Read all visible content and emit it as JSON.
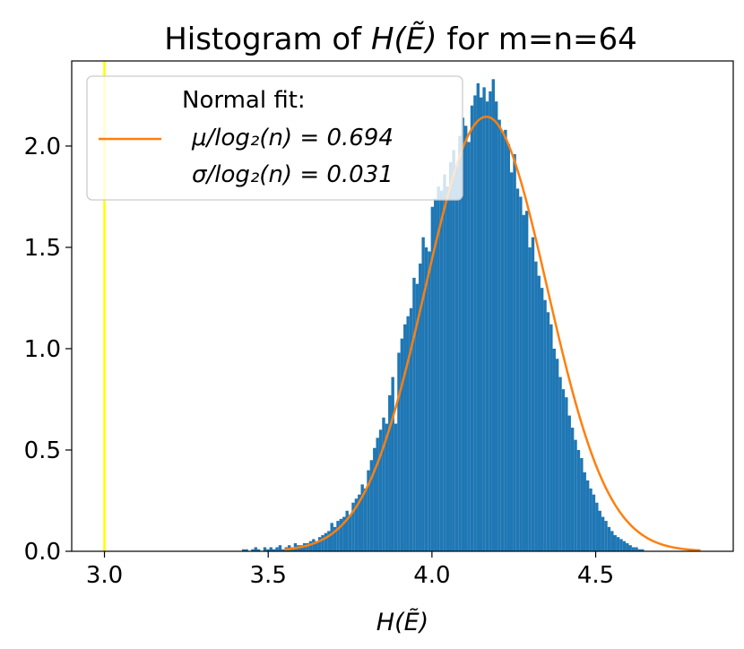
{
  "chart_data": {
    "type": "bar",
    "title_prefix": "Histogram of ",
    "title_math": "H(Ẽ)",
    "title_suffix": " for m=n=64",
    "xlabel": "H(Ẽ)",
    "ylabel": "",
    "xlim": [
      2.9,
      4.92
    ],
    "ylim": [
      0,
      2.42
    ],
    "xticks": [
      {
        "value": 3.0,
        "label": "3.0"
      },
      {
        "value": 3.5,
        "label": "3.5"
      },
      {
        "value": 4.0,
        "label": "4.0"
      },
      {
        "value": 4.5,
        "label": "4.5"
      }
    ],
    "yticks": [
      {
        "value": 0.0,
        "label": "0.0"
      },
      {
        "value": 0.5,
        "label": "0.5"
      },
      {
        "value": 1.0,
        "label": "1.0"
      },
      {
        "value": 1.5,
        "label": "1.5"
      },
      {
        "value": 2.0,
        "label": "2.0"
      }
    ],
    "vertical_line": {
      "x": 3.0,
      "color": "#ffff00"
    },
    "histogram": {
      "color": "#1f77b4",
      "bin_start": 3.42,
      "bin_width": 0.0093,
      "density": [
        0.01,
        0.01,
        0.0,
        0.01,
        0.02,
        0.01,
        0.0,
        0.02,
        0.01,
        0.02,
        0.01,
        0.02,
        0.03,
        0.01,
        0.02,
        0.03,
        0.02,
        0.04,
        0.03,
        0.03,
        0.04,
        0.04,
        0.05,
        0.06,
        0.05,
        0.07,
        0.08,
        0.09,
        0.1,
        0.14,
        0.12,
        0.15,
        0.16,
        0.17,
        0.2,
        0.18,
        0.24,
        0.26,
        0.28,
        0.33,
        0.31,
        0.4,
        0.45,
        0.51,
        0.56,
        0.6,
        0.66,
        0.63,
        0.77,
        0.86,
        0.63,
        0.98,
        1.05,
        1.12,
        1.16,
        1.2,
        1.35,
        1.32,
        1.42,
        1.55,
        1.5,
        1.48,
        1.7,
        1.74,
        1.8,
        1.78,
        1.86,
        1.8,
        1.92,
        1.98,
        1.9,
        2.05,
        2.14,
        2.1,
        2.02,
        2.2,
        2.25,
        2.31,
        2.24,
        2.29,
        2.22,
        2.27,
        2.33,
        2.22,
        2.13,
        2.07,
        2.08,
        2.01,
        1.87,
        1.96,
        1.79,
        1.75,
        1.66,
        1.68,
        1.5,
        1.55,
        1.43,
        1.36,
        1.3,
        1.24,
        1.18,
        1.12,
        1.0,
        0.95,
        0.86,
        0.8,
        0.76,
        0.67,
        0.61,
        0.55,
        0.5,
        0.46,
        0.39,
        0.35,
        0.31,
        0.28,
        0.24,
        0.2,
        0.17,
        0.15,
        0.12,
        0.1,
        0.08,
        0.07,
        0.06,
        0.05,
        0.04,
        0.03,
        0.02,
        0.02,
        0.01,
        0.01
      ]
    },
    "series": [
      {
        "name_prefix": "Normal fit:",
        "name_line1": "μ/log₂(n) = 0.694",
        "name_line2": "σ/log₂(n) = 0.031",
        "type": "line",
        "color": "#ff7f0e",
        "mu": 4.166,
        "sigma": 0.186,
        "x_range": [
          3.55,
          4.82
        ]
      }
    ],
    "legend_placement": "top-left",
    "grid": false
  }
}
